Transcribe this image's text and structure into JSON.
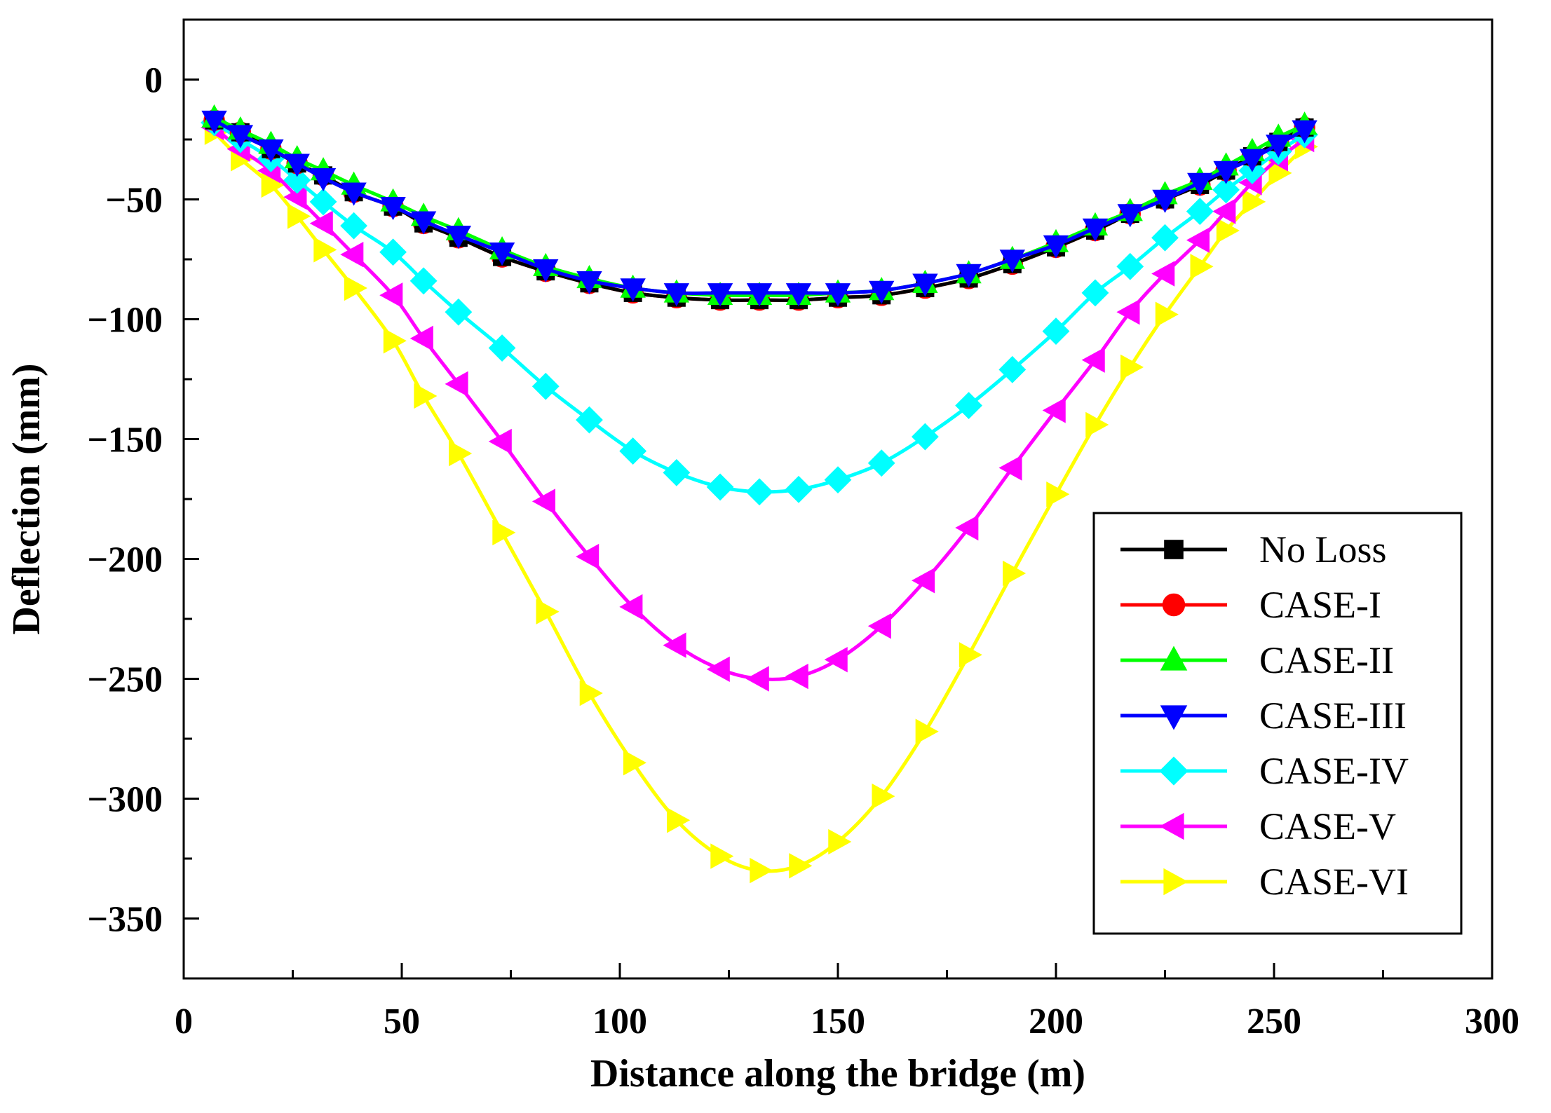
{
  "chart_data": {
    "type": "line",
    "title": "",
    "xlabel": "Distance along the bridge (m)",
    "ylabel": "Deflection (mm)",
    "xlim": [
      0,
      300
    ],
    "ylim": [
      -375,
      25
    ],
    "xticks": [
      0,
      50,
      100,
      150,
      200,
      250,
      300
    ],
    "yticks": [
      0,
      -50,
      -100,
      -150,
      -200,
      -250,
      -300,
      -350
    ],
    "xtick_labels": [
      "0",
      "50",
      "100",
      "150",
      "200",
      "250",
      "300"
    ],
    "ytick_labels": [
      "0",
      "−50",
      "−100",
      "−150",
      "−200",
      "−250",
      "−300",
      "−350"
    ],
    "grid": false,
    "legend_position": "bottom-right",
    "x": [
      7,
      13,
      20,
      26,
      32,
      39,
      48,
      55,
      63,
      73,
      83,
      93,
      103,
      113,
      123,
      132,
      141,
      150,
      160,
      170,
      180,
      190,
      200,
      209,
      217,
      225,
      233,
      239,
      245,
      251,
      257
    ],
    "series": [
      {
        "name": "No Loss",
        "color": "#000000",
        "marker": "square",
        "values": [
          -17,
          -22,
          -29,
          -35,
          -40,
          -47,
          -53,
          -60,
          -66,
          -74,
          -80,
          -85,
          -89,
          -91,
          -92,
          -92,
          -92,
          -91,
          -90,
          -87,
          -83,
          -77,
          -70,
          -63,
          -56,
          -50,
          -44,
          -38,
          -32,
          -26,
          -20
        ]
      },
      {
        "name": "CASE-I",
        "color": "#ff0000",
        "marker": "circle",
        "values": [
          -17,
          -22,
          -29,
          -35,
          -40,
          -47,
          -53,
          -60,
          -66,
          -74,
          -80,
          -85,
          -89,
          -91,
          -92,
          -92,
          -92,
          -91,
          -90,
          -87,
          -83,
          -77,
          -70,
          -63,
          -56,
          -50,
          -44,
          -38,
          -32,
          -26,
          -20
        ]
      },
      {
        "name": "CASE-II",
        "color": "#00ff00",
        "marker": "triangle-up",
        "values": [
          -16,
          -21,
          -27,
          -33,
          -38,
          -44,
          -51,
          -57,
          -63,
          -71,
          -78,
          -83,
          -87,
          -89,
          -90,
          -90,
          -90,
          -89,
          -88,
          -85,
          -81,
          -75,
          -68,
          -61,
          -55,
          -48,
          -42,
          -36,
          -30,
          -24,
          -19
        ]
      },
      {
        "name": "CASE-III",
        "color": "#0000ff",
        "marker": "triangle-down",
        "values": [
          -17,
          -23,
          -29,
          -35,
          -41,
          -47,
          -53,
          -59,
          -65,
          -72,
          -79,
          -84,
          -87,
          -89,
          -89,
          -89,
          -89,
          -89,
          -88,
          -85,
          -81,
          -75,
          -69,
          -62,
          -56,
          -50,
          -43,
          -38,
          -33,
          -27,
          -21
        ]
      },
      {
        "name": "CASE-IV",
        "color": "#00ffff",
        "marker": "diamond",
        "values": [
          -18,
          -25,
          -33,
          -42,
          -51,
          -61,
          -72,
          -84,
          -97,
          -112,
          -128,
          -142,
          -155,
          -164,
          -170,
          -172,
          -171,
          -167,
          -160,
          -149,
          -136,
          -121,
          -105,
          -89,
          -78,
          -66,
          -55,
          -46,
          -38,
          -30,
          -23
        ]
      },
      {
        "name": "CASE-V",
        "color": "#ff00ff",
        "marker": "triangle-left",
        "values": [
          -20,
          -29,
          -38,
          -49,
          -60,
          -73,
          -90,
          -108,
          -127,
          -151,
          -176,
          -199,
          -220,
          -236,
          -246,
          -250,
          -249,
          -242,
          -228,
          -209,
          -187,
          -162,
          -138,
          -117,
          -97,
          -81,
          -67,
          -55,
          -43,
          -33,
          -25
        ]
      },
      {
        "name": "CASE-VI",
        "color": "#ffff00",
        "marker": "triangle-right",
        "values": [
          -22,
          -33,
          -44,
          -57,
          -71,
          -87,
          -109,
          -132,
          -156,
          -189,
          -222,
          -256,
          -285,
          -309,
          -324,
          -330,
          -328,
          -318,
          -299,
          -272,
          -240,
          -206,
          -173,
          -144,
          -120,
          -98,
          -78,
          -63,
          -51,
          -39,
          -28
        ]
      }
    ]
  }
}
